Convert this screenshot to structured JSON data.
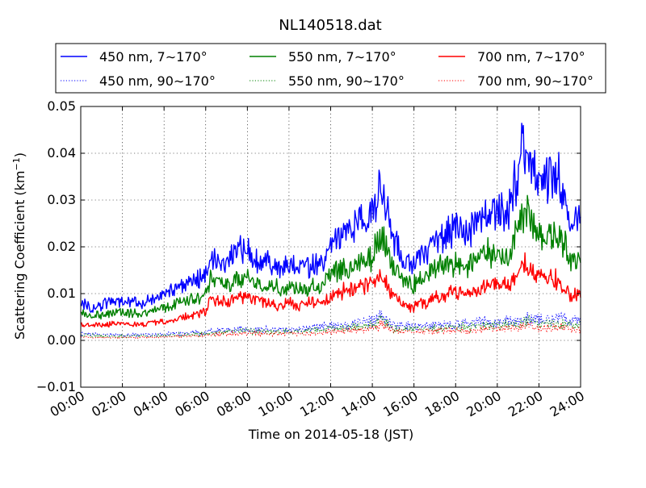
{
  "chart_data": {
    "type": "line",
    "title": "NL140518.dat",
    "xlabel": "Time on 2014-05-18 (JST)",
    "ylabel": "Scattering Coefficient (km",
    "ylabel_exponent": "−1",
    "ylabel_close": ")",
    "xlim": [
      0,
      24
    ],
    "ylim": [
      -0.01,
      0.05
    ],
    "x_ticks": [
      {
        "value": 0,
        "label": "00:00"
      },
      {
        "value": 2,
        "label": "02:00"
      },
      {
        "value": 4,
        "label": "04:00"
      },
      {
        "value": 6,
        "label": "06:00"
      },
      {
        "value": 8,
        "label": "08:00"
      },
      {
        "value": 10,
        "label": "10:00"
      },
      {
        "value": 12,
        "label": "12:00"
      },
      {
        "value": 14,
        "label": "14:00"
      },
      {
        "value": 16,
        "label": "16:00"
      },
      {
        "value": 18,
        "label": "18:00"
      },
      {
        "value": 20,
        "label": "20:00"
      },
      {
        "value": 22,
        "label": "22:00"
      },
      {
        "value": 24,
        "label": "24:00"
      }
    ],
    "y_ticks": [
      {
        "value": -0.01,
        "label": "−0.01"
      },
      {
        "value": 0.0,
        "label": "0.00"
      },
      {
        "value": 0.01,
        "label": "0.01"
      },
      {
        "value": 0.02,
        "label": "0.02"
      },
      {
        "value": 0.03,
        "label": "0.03"
      },
      {
        "value": 0.04,
        "label": "0.04"
      },
      {
        "value": 0.05,
        "label": "0.05"
      }
    ],
    "grid": true,
    "legend_position": "top, above plot",
    "series": [
      {
        "name": "450 nm, 7∼170°",
        "color": "#0000ff",
        "style": "solid",
        "x": [
          0,
          0.5,
          1,
          1.5,
          2,
          2.5,
          3,
          3.5,
          4,
          4.5,
          5,
          5.5,
          6,
          6.25,
          6.5,
          7,
          7.5,
          8,
          8.5,
          9,
          9.5,
          10,
          10.5,
          11,
          11.5,
          12,
          12.5,
          13,
          13.5,
          14,
          14.25,
          14.5,
          15,
          15.5,
          16,
          16.5,
          17,
          17.5,
          18,
          18.5,
          19,
          19.5,
          20,
          20.5,
          21,
          21.25,
          21.5,
          22,
          22.5,
          23,
          23.5,
          24
        ],
        "y": [
          0.008,
          0.007,
          0.0075,
          0.0085,
          0.0085,
          0.008,
          0.008,
          0.009,
          0.0095,
          0.011,
          0.012,
          0.013,
          0.0145,
          0.019,
          0.017,
          0.016,
          0.019,
          0.02,
          0.017,
          0.017,
          0.015,
          0.016,
          0.0155,
          0.016,
          0.016,
          0.0195,
          0.023,
          0.024,
          0.025,
          0.027,
          0.032,
          0.033,
          0.022,
          0.017,
          0.0165,
          0.019,
          0.021,
          0.023,
          0.024,
          0.022,
          0.025,
          0.027,
          0.028,
          0.027,
          0.036,
          0.042,
          0.039,
          0.032,
          0.034,
          0.035,
          0.025,
          0.026
        ]
      },
      {
        "name": "550 nm, 7∼170°",
        "color": "#008000",
        "style": "solid",
        "x": [
          0,
          0.5,
          1,
          1.5,
          2,
          2.5,
          3,
          3.5,
          4,
          4.5,
          5,
          5.5,
          6,
          6.25,
          6.5,
          7,
          7.5,
          8,
          8.5,
          9,
          9.5,
          10,
          10.5,
          11,
          11.5,
          12,
          12.5,
          13,
          13.5,
          14,
          14.25,
          14.5,
          15,
          15.5,
          16,
          16.5,
          17,
          17.5,
          18,
          18.5,
          19,
          19.5,
          20,
          20.5,
          21,
          21.25,
          21.5,
          22,
          22.5,
          23,
          23.5,
          24
        ],
        "y": [
          0.006,
          0.0052,
          0.0055,
          0.006,
          0.006,
          0.0058,
          0.0058,
          0.0065,
          0.0068,
          0.0078,
          0.0085,
          0.009,
          0.01,
          0.013,
          0.012,
          0.0115,
          0.013,
          0.0135,
          0.012,
          0.012,
          0.011,
          0.0115,
          0.011,
          0.0115,
          0.0115,
          0.0135,
          0.0155,
          0.016,
          0.017,
          0.018,
          0.021,
          0.022,
          0.0155,
          0.0125,
          0.012,
          0.0135,
          0.015,
          0.016,
          0.0165,
          0.0155,
          0.0175,
          0.0185,
          0.019,
          0.0185,
          0.024,
          0.028,
          0.026,
          0.022,
          0.0225,
          0.023,
          0.017,
          0.017
        ]
      },
      {
        "name": "700 nm, 7∼170°",
        "color": "#ff0000",
        "style": "solid",
        "x": [
          0,
          0.5,
          1,
          1.5,
          2,
          2.5,
          3,
          3.5,
          4,
          4.5,
          5,
          5.5,
          6,
          6.25,
          6.5,
          7,
          7.5,
          8,
          8.5,
          9,
          9.5,
          10,
          10.5,
          11,
          11.5,
          12,
          12.5,
          13,
          13.5,
          14,
          14.25,
          14.5,
          15,
          15.5,
          16,
          16.5,
          17,
          17.5,
          18,
          18.5,
          19,
          19.5,
          20,
          20.5,
          21,
          21.25,
          21.5,
          22,
          22.5,
          23,
          23.5,
          24
        ],
        "y": [
          0.0035,
          0.0032,
          0.0033,
          0.0035,
          0.0035,
          0.0034,
          0.0034,
          0.0038,
          0.004,
          0.0045,
          0.005,
          0.0055,
          0.0065,
          0.009,
          0.0085,
          0.008,
          0.009,
          0.0095,
          0.0085,
          0.008,
          0.0075,
          0.008,
          0.0075,
          0.008,
          0.008,
          0.009,
          0.0105,
          0.011,
          0.0115,
          0.012,
          0.0135,
          0.0135,
          0.0095,
          0.0075,
          0.007,
          0.008,
          0.009,
          0.0095,
          0.0105,
          0.0095,
          0.011,
          0.0115,
          0.012,
          0.0115,
          0.0145,
          0.0175,
          0.016,
          0.0135,
          0.013,
          0.013,
          0.0095,
          0.0098
        ]
      },
      {
        "name": "450 nm, 90∼170°",
        "color": "#0000ff",
        "style": "dotted",
        "x": [
          0,
          1,
          2,
          3,
          4,
          5,
          6,
          7,
          8,
          9,
          10,
          11,
          12,
          13,
          14,
          14.5,
          15,
          16,
          17,
          18,
          19,
          20,
          21,
          21.5,
          22,
          23,
          24
        ],
        "y": [
          0.0015,
          0.0012,
          0.0012,
          0.0012,
          0.0013,
          0.0015,
          0.0018,
          0.0022,
          0.0025,
          0.0022,
          0.0022,
          0.0025,
          0.003,
          0.0035,
          0.004,
          0.0055,
          0.0032,
          0.003,
          0.0033,
          0.0035,
          0.0038,
          0.004,
          0.0042,
          0.005,
          0.0043,
          0.0047,
          0.0038
        ]
      },
      {
        "name": "550 nm, 90∼170°",
        "color": "#008000",
        "style": "dotted",
        "x": [
          0,
          1,
          2,
          3,
          4,
          5,
          6,
          7,
          8,
          9,
          10,
          11,
          12,
          13,
          14,
          14.5,
          15,
          16,
          17,
          18,
          19,
          20,
          21,
          21.5,
          22,
          23,
          24
        ],
        "y": [
          0.0011,
          0.0009,
          0.0009,
          0.0009,
          0.001,
          0.0012,
          0.0015,
          0.0018,
          0.002,
          0.0018,
          0.0018,
          0.002,
          0.0024,
          0.0028,
          0.0032,
          0.0045,
          0.0026,
          0.0024,
          0.0026,
          0.0028,
          0.003,
          0.0032,
          0.0034,
          0.0042,
          0.0034,
          0.0037,
          0.003
        ]
      },
      {
        "name": "700 nm, 90∼170°",
        "color": "#ff0000",
        "style": "dotted",
        "x": [
          0,
          1,
          2,
          3,
          4,
          5,
          6,
          7,
          8,
          9,
          10,
          11,
          12,
          13,
          14,
          14.5,
          15,
          16,
          17,
          18,
          19,
          20,
          21,
          21.5,
          22,
          23,
          24
        ],
        "y": [
          0.0007,
          0.0006,
          0.0006,
          0.0006,
          0.0007,
          0.0009,
          0.0011,
          0.0014,
          0.0015,
          0.0014,
          0.0014,
          0.0015,
          0.0018,
          0.0021,
          0.0024,
          0.0035,
          0.002,
          0.0018,
          0.002,
          0.0021,
          0.0022,
          0.0024,
          0.0026,
          0.0032,
          0.0025,
          0.0028,
          0.0022
        ]
      }
    ]
  }
}
